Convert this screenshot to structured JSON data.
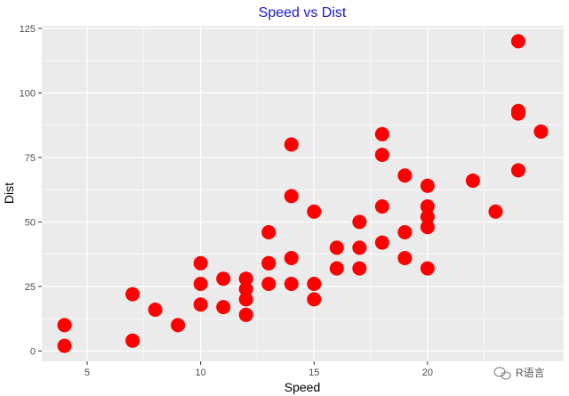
{
  "chart_data": {
    "type": "scatter",
    "title": "Speed vs Dist",
    "xlabel": "Speed",
    "ylabel": "Dist",
    "xlim": [
      3.0,
      26.0
    ],
    "ylim": [
      -4.0,
      126.0
    ],
    "x_ticks": [
      5,
      10,
      15,
      20
    ],
    "y_ticks": [
      0,
      25,
      50,
      75,
      100,
      125
    ],
    "grid": true,
    "legend": "none",
    "colors": {
      "point": "#ff0000",
      "title": "#1a1acd",
      "panel": "#ebebeb",
      "grid": "#ffffff"
    },
    "points": [
      [
        4,
        2
      ],
      [
        4,
        10
      ],
      [
        7,
        4
      ],
      [
        7,
        22
      ],
      [
        8,
        16
      ],
      [
        9,
        10
      ],
      [
        10,
        18
      ],
      [
        10,
        26
      ],
      [
        10,
        34
      ],
      [
        11,
        17
      ],
      [
        11,
        28
      ],
      [
        12,
        14
      ],
      [
        12,
        20
      ],
      [
        12,
        24
      ],
      [
        12,
        28
      ],
      [
        13,
        26
      ],
      [
        13,
        34
      ],
      [
        13,
        34
      ],
      [
        13,
        46
      ],
      [
        14,
        26
      ],
      [
        14,
        36
      ],
      [
        14,
        60
      ],
      [
        14,
        80
      ],
      [
        15,
        20
      ],
      [
        15,
        26
      ],
      [
        15,
        54
      ],
      [
        16,
        32
      ],
      [
        16,
        40
      ],
      [
        17,
        32
      ],
      [
        17,
        40
      ],
      [
        17,
        50
      ],
      [
        18,
        42
      ],
      [
        18,
        56
      ],
      [
        18,
        76
      ],
      [
        18,
        84
      ],
      [
        19,
        36
      ],
      [
        19,
        46
      ],
      [
        19,
        68
      ],
      [
        20,
        32
      ],
      [
        20,
        48
      ],
      [
        20,
        52
      ],
      [
        20,
        56
      ],
      [
        20,
        64
      ],
      [
        22,
        66
      ],
      [
        23,
        54
      ],
      [
        24,
        70
      ],
      [
        24,
        92
      ],
      [
        24,
        93
      ],
      [
        24,
        120
      ],
      [
        25,
        85
      ]
    ]
  },
  "watermark": {
    "text": "R语言"
  }
}
